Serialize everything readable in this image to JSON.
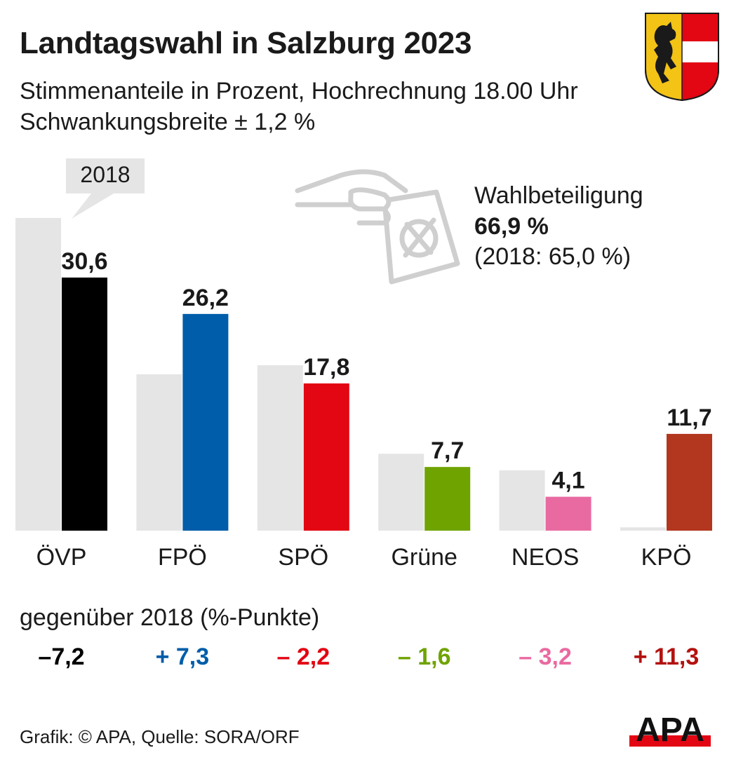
{
  "title": "Landtagswahl in Salzburg 2023",
  "subtitle_line1": "Stimmenanteile in Prozent, Hochrechnung 18.00 Uhr",
  "subtitle_line2": "Schwankungsbreite ± 1,2 %",
  "previous_year_callout": "2018",
  "turnout": {
    "label": "Wahlbeteiligung",
    "value": "66,9 %",
    "previous": "(2018: 65,0  %)"
  },
  "change_heading": "gegenüber 2018 (%-Punkte)",
  "credit": "Grafik: © APA, Quelle: SORA/ORF",
  "logo_text": "APA",
  "icons": [
    "salzburg-crest-icon",
    "ballot-hand-icon",
    "apa-logo"
  ],
  "colors": {
    "ÖVP": "#000000",
    "FPÖ": "#005da9",
    "SPÖ": "#e30613",
    "Grüne": "#6fa300",
    "NEOS": "#e96aa1",
    "KPÖ": "#b3361f",
    "previous": "#e5e5e6"
  },
  "chart_data": {
    "type": "bar",
    "categories": [
      "ÖVP",
      "FPÖ",
      "SPÖ",
      "Grüne",
      "NEOS",
      "KPÖ"
    ],
    "series": [
      {
        "values": [
          37.8,
          18.9,
          20.0,
          9.3,
          7.3,
          0.4
        ]
      },
      {
        "values": [
          30.6,
          26.2,
          17.8,
          7.7,
          4.1,
          11.7
        ]
      }
    ],
    "value_labels": [
      "30,6",
      "26,2",
      "17,8",
      "7,7",
      "4,1",
      "11,7"
    ],
    "change_labels": [
      "–7,2",
      "+ 7,3",
      "– 2,2",
      "– 1,6",
      "– 3,2",
      "+ 11,3"
    ],
    "change_colors": [
      "#000000",
      "#005da9",
      "#e30613",
      "#6fa300",
      "#e96aa1",
      "#b3120f"
    ],
    "ylim": [
      0,
      40
    ],
    "grid": false,
    "legend": "none"
  }
}
